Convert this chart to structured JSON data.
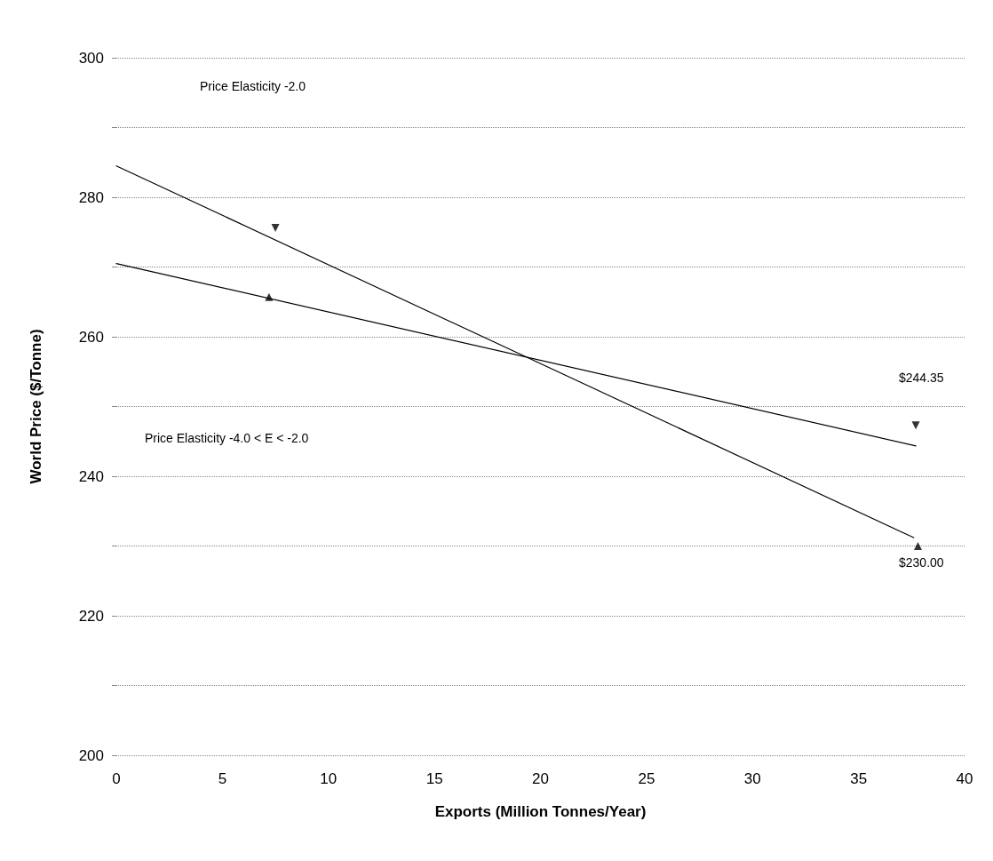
{
  "chart_data": {
    "type": "line",
    "xlabel": "Exports (Million Tonnes/Year)",
    "ylabel": "World Price ($/Tonne)",
    "xlim": [
      0,
      40
    ],
    "xticks": [
      0,
      5,
      10,
      15,
      20,
      25,
      30,
      35,
      40
    ],
    "ylim": [
      200,
      300
    ],
    "yticks": [
      200,
      {
        "value": 210,
        "label": null
      },
      220,
      {
        "value": 230,
        "label": null
      },
      240,
      {
        "value": 250,
        "label": null
      },
      260,
      {
        "value": 270,
        "label": null
      },
      280,
      {
        "value": 290,
        "label": null
      },
      300
    ],
    "grid": "y",
    "line_style": "solid",
    "marker": "none",
    "series": [
      {
        "color": "#000000",
        "x": [
          0,
          37.6
        ],
        "values": [
          284.5,
          231.2
        ]
      },
      {
        "color": "#000000",
        "x": [
          0,
          37.7
        ],
        "values": [
          270.5,
          244.35
        ]
      },
      {
        "type": "scatter",
        "marker": "triangle-down",
        "color": "#000000",
        "x": [
          7.5,
          37.7
        ],
        "values": [
          275.6,
          247.3
        ]
      },
      {
        "type": "scatter",
        "marker": "triangle",
        "color": "#000000",
        "x": [
          7.2,
          37.8
        ],
        "values": [
          265.7,
          230
        ]
      }
    ],
    "annotations": [
      "Price Elasticity -2.0",
      "Price Elasticity -4.0 < E < -2.0",
      "$244.35",
      "$230.00"
    ]
  }
}
